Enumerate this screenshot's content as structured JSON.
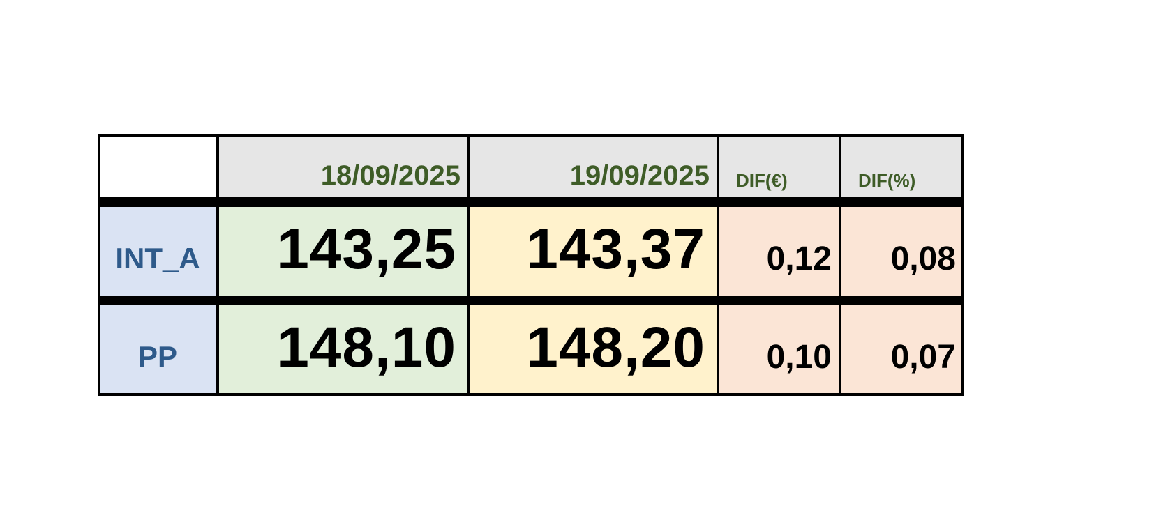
{
  "table": {
    "header": [
      "18/09/2025",
      "19/09/2025",
      "DIF(€)",
      "DIF(%)"
    ],
    "rows": [
      {
        "label": "INT_A",
        "cells": [
          "143,25",
          "143,37",
          "0,12",
          "0,08"
        ]
      },
      {
        "label": "PP",
        "cells": [
          "148,10",
          "148,20",
          "0,10",
          "0,07"
        ]
      }
    ]
  }
}
